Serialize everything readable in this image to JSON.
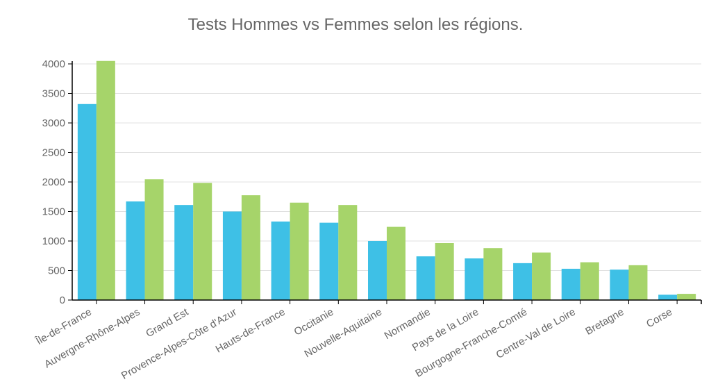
{
  "chart_data": {
    "type": "bar",
    "title": "Tests Hommes vs Femmes selon les régions.",
    "categories": [
      "Île-de-France",
      "Auvergne-Rhône-Alpes",
      "Grand Est",
      "Provence-Alpes-Côte d'Azur",
      "Hauts-de-France",
      "Occitanie",
      "Nouvelle-Aquitaine",
      "Normandie",
      "Pays de la Loire",
      "Bourgogne-Franche-Comté",
      "Centre-Val de Loire",
      "Bretagne",
      "Corse"
    ],
    "series": [
      {
        "values": [
          3320,
          1670,
          1610,
          1500,
          1330,
          1310,
          1000,
          740,
          705,
          625,
          530,
          515,
          90
        ],
        "color": "#3ec0e6"
      },
      {
        "values": [
          4050,
          2045,
          1985,
          1775,
          1650,
          1610,
          1240,
          965,
          880,
          805,
          640,
          590,
          105
        ],
        "color": "#a6d46a"
      }
    ],
    "xlabel": "",
    "ylabel": "",
    "ylim": [
      0,
      4000
    ],
    "yticks": [
      0,
      500,
      1000,
      1500,
      2000,
      2500,
      3000,
      3500,
      4000
    ],
    "grid": true,
    "grid_color": "#e0e0e0",
    "axis_color": "#000000"
  }
}
